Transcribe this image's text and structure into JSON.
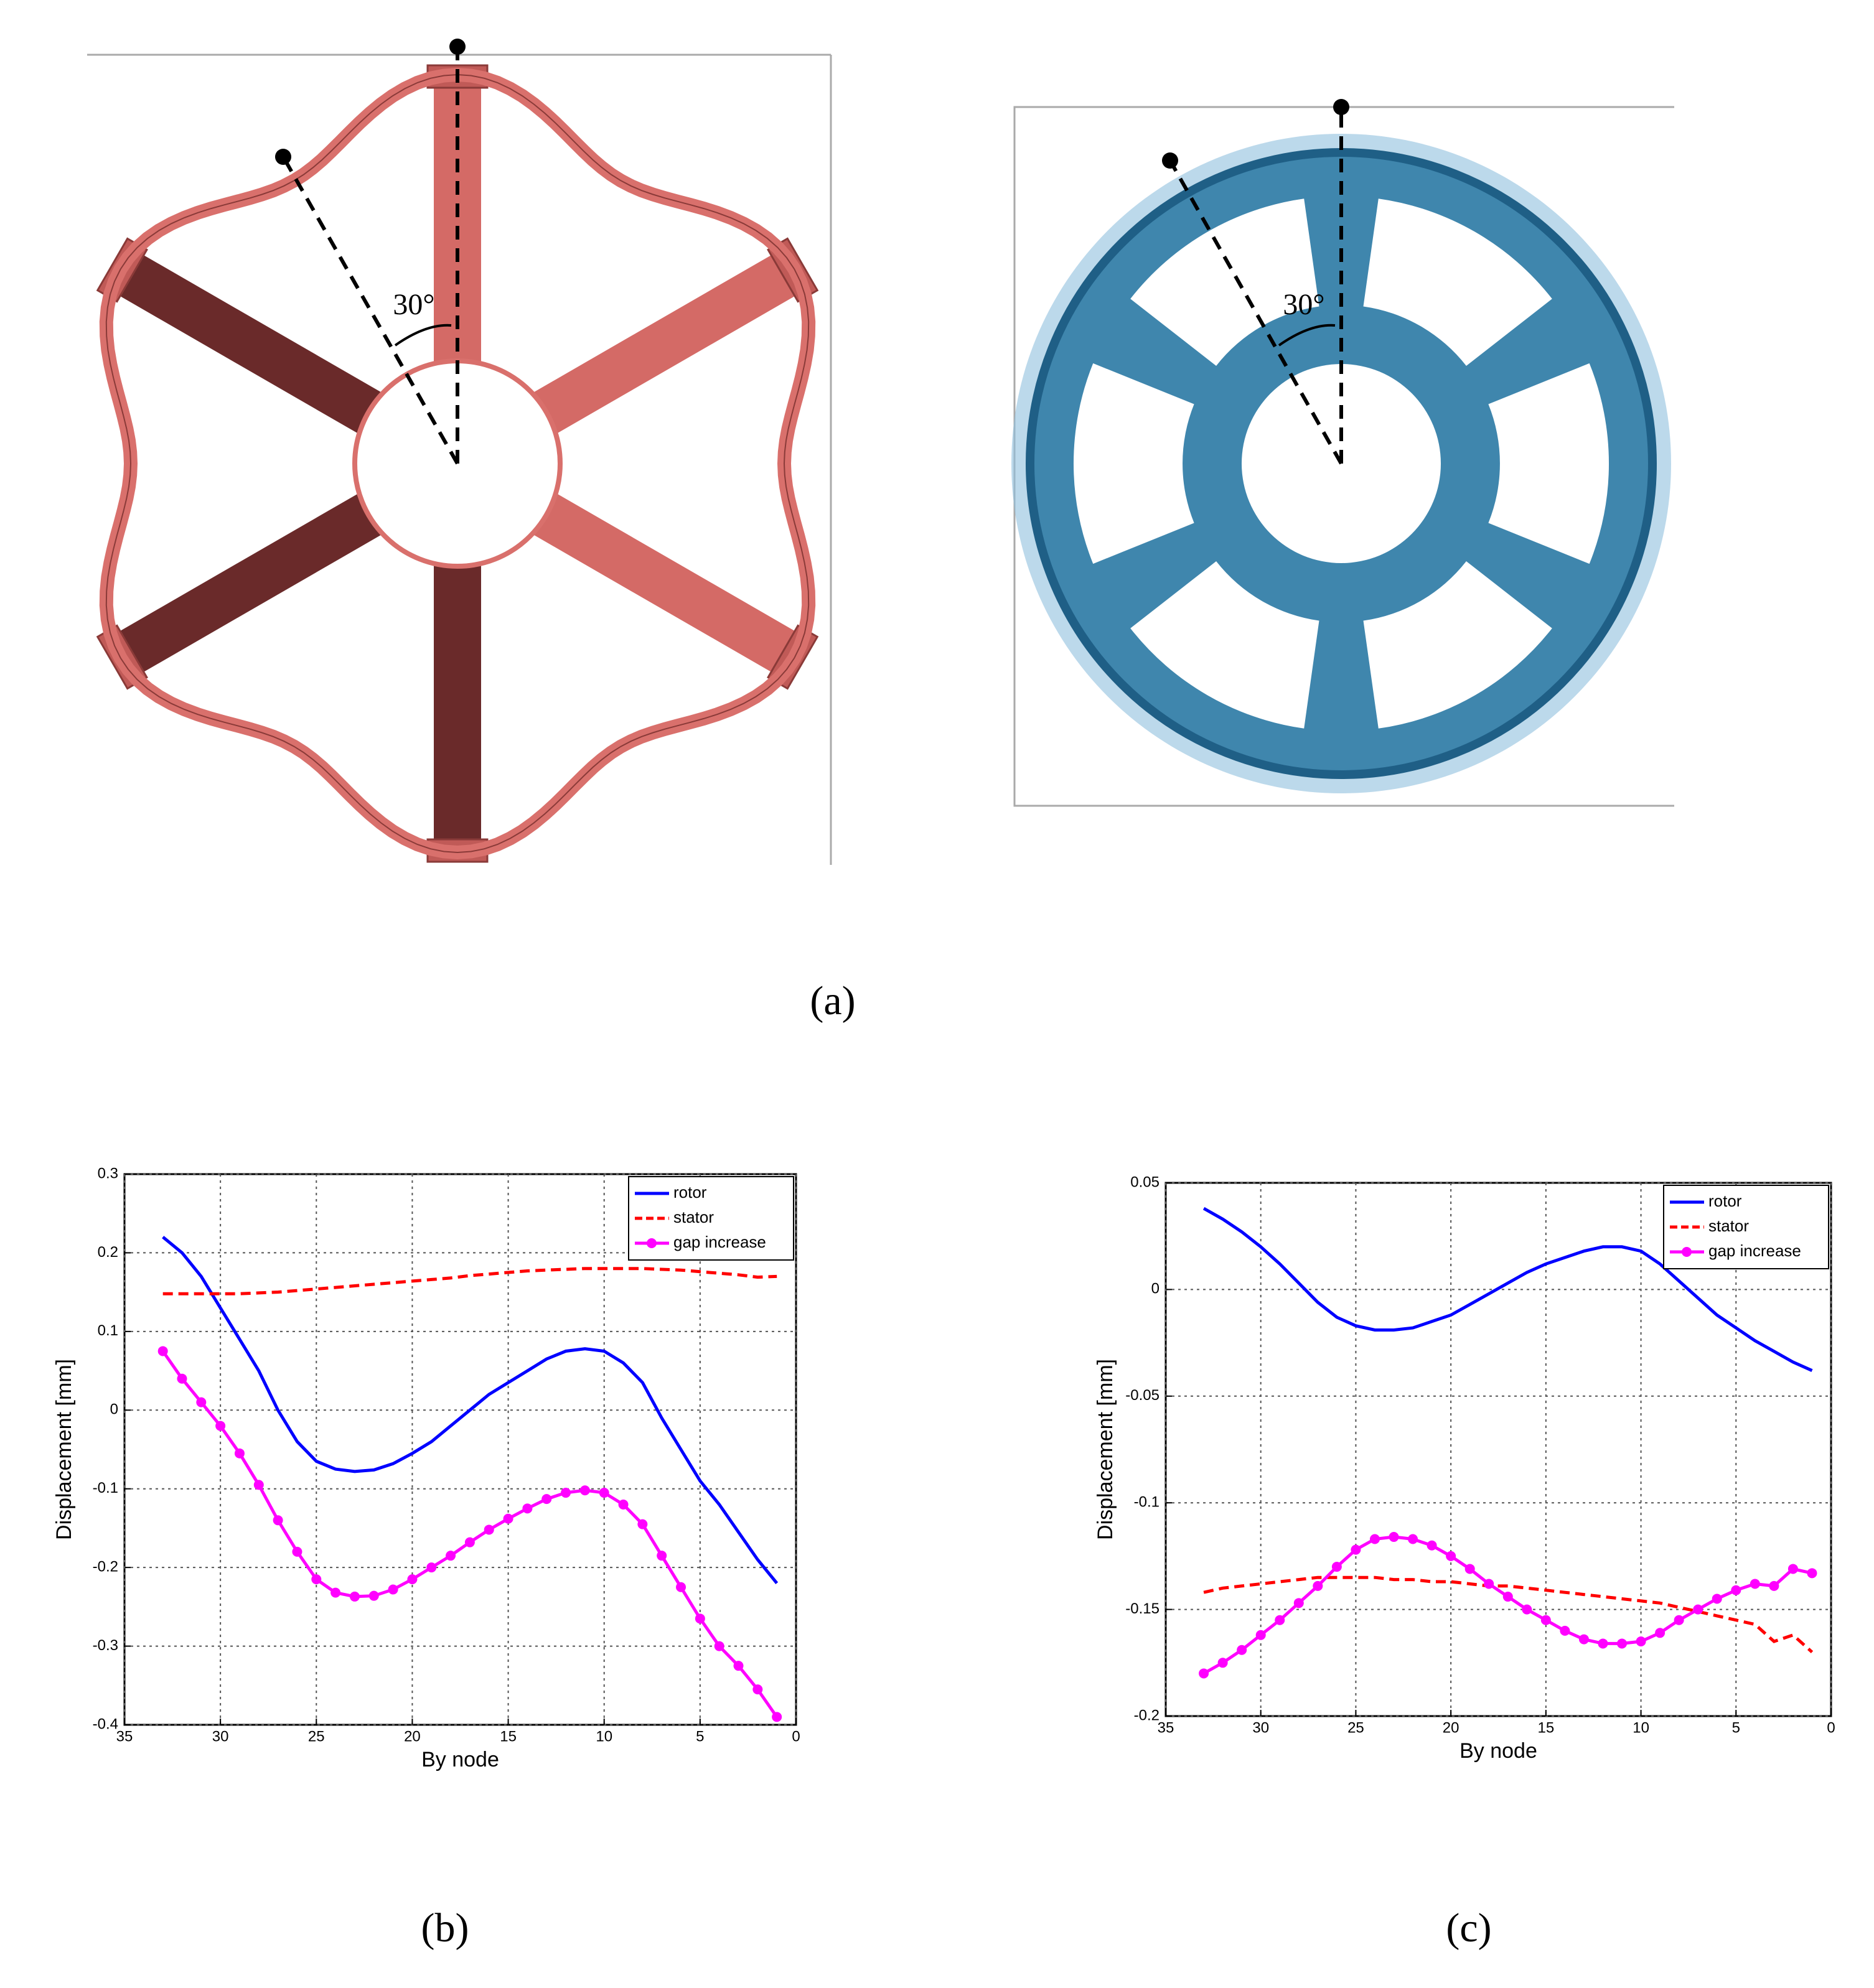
{
  "figure": {
    "panel_labels": [
      "(a)",
      "(b)",
      "(c)"
    ],
    "angle_labels": [
      "30°",
      "30°"
    ]
  },
  "chart_data": [
    {
      "type": "line",
      "xlabel": "By node",
      "ylabel": "Displacement [mm]",
      "x": [
        33,
        32,
        31,
        30,
        29,
        28,
        27,
        26,
        25,
        24,
        23,
        22,
        21,
        20,
        19,
        18,
        17,
        16,
        15,
        14,
        13,
        12,
        11,
        10,
        9,
        8,
        7,
        6,
        5,
        4,
        3,
        2,
        1
      ],
      "xlim": [
        35,
        0
      ],
      "xticks": [
        35,
        30,
        25,
        20,
        15,
        10,
        5,
        0
      ],
      "ylim": [
        -0.4,
        0.3
      ],
      "yticks": [
        0.3,
        0.2,
        0.1,
        0,
        -0.1,
        -0.2,
        -0.3,
        -0.4
      ],
      "grid": true,
      "legend": "upper right",
      "series": [
        {
          "name": "rotor",
          "color": "#0000ff",
          "linestyle": "solid",
          "values": [
            0.22,
            0.2,
            0.17,
            0.13,
            0.09,
            0.05,
            0.0,
            -0.04,
            -0.065,
            -0.075,
            -0.078,
            -0.076,
            -0.068,
            -0.055,
            -0.04,
            -0.02,
            0.0,
            0.02,
            0.035,
            0.05,
            0.065,
            0.075,
            0.078,
            0.075,
            0.06,
            0.035,
            -0.01,
            -0.05,
            -0.09,
            -0.12,
            -0.155,
            -0.19,
            -0.22
          ]
        },
        {
          "name": "stator",
          "color": "#ff0000",
          "linestyle": "dashed",
          "values": [
            0.148,
            0.148,
            0.148,
            0.148,
            0.148,
            0.149,
            0.15,
            0.152,
            0.154,
            0.156,
            0.158,
            0.16,
            0.162,
            0.164,
            0.166,
            0.168,
            0.171,
            0.173,
            0.175,
            0.177,
            0.178,
            0.179,
            0.18,
            0.18,
            0.18,
            0.18,
            0.179,
            0.178,
            0.176,
            0.174,
            0.172,
            0.169,
            0.17
          ]
        },
        {
          "name": "gap increase",
          "color": "#ff00ff",
          "linestyle": "solid",
          "marker": "star",
          "values": [
            0.075,
            0.04,
            0.01,
            -0.02,
            -0.055,
            -0.095,
            -0.14,
            -0.18,
            -0.215,
            -0.232,
            -0.237,
            -0.236,
            -0.228,
            -0.215,
            -0.2,
            -0.185,
            -0.168,
            -0.152,
            -0.138,
            -0.125,
            -0.113,
            -0.105,
            -0.102,
            -0.105,
            -0.12,
            -0.145,
            -0.185,
            -0.225,
            -0.265,
            -0.3,
            -0.325,
            -0.355,
            -0.39
          ]
        }
      ]
    },
    {
      "type": "line",
      "xlabel": "By node",
      "ylabel": "Displacement [mm]",
      "x": [
        33,
        32,
        31,
        30,
        29,
        28,
        27,
        26,
        25,
        24,
        23,
        22,
        21,
        20,
        19,
        18,
        17,
        16,
        15,
        14,
        13,
        12,
        11,
        10,
        9,
        8,
        7,
        6,
        5,
        4,
        3,
        2,
        1
      ],
      "xlim": [
        35,
        0
      ],
      "xticks": [
        35,
        30,
        25,
        20,
        15,
        10,
        5,
        0
      ],
      "ylim": [
        -0.2,
        0.05
      ],
      "yticks": [
        0.05,
        0,
        -0.05,
        -0.1,
        -0.15,
        -0.2
      ],
      "grid": true,
      "legend": "upper right",
      "series": [
        {
          "name": "rotor",
          "color": "#0000ff",
          "linestyle": "solid",
          "values": [
            0.038,
            0.033,
            0.027,
            0.02,
            0.012,
            0.003,
            -0.006,
            -0.013,
            -0.017,
            -0.019,
            -0.019,
            -0.018,
            -0.015,
            -0.012,
            -0.007,
            -0.002,
            0.003,
            0.008,
            0.012,
            0.015,
            0.018,
            0.02,
            0.02,
            0.018,
            0.012,
            0.004,
            -0.004,
            -0.012,
            -0.018,
            -0.024,
            -0.029,
            -0.034,
            -0.038
          ]
        },
        {
          "name": "stator",
          "color": "#ff0000",
          "linestyle": "dashed",
          "values": [
            -0.142,
            -0.14,
            -0.139,
            -0.138,
            -0.137,
            -0.136,
            -0.135,
            -0.135,
            -0.135,
            -0.135,
            -0.136,
            -0.136,
            -0.137,
            -0.137,
            -0.138,
            -0.139,
            -0.139,
            -0.14,
            -0.141,
            -0.142,
            -0.143,
            -0.144,
            -0.145,
            -0.146,
            -0.147,
            -0.149,
            -0.151,
            -0.153,
            -0.155,
            -0.157,
            -0.165,
            -0.162,
            -0.17
          ]
        },
        {
          "name": "gap increase",
          "color": "#ff00ff",
          "linestyle": "solid",
          "marker": "star",
          "values": [
            -0.18,
            -0.175,
            -0.169,
            -0.162,
            -0.155,
            -0.147,
            -0.139,
            -0.13,
            -0.122,
            -0.117,
            -0.116,
            -0.117,
            -0.12,
            -0.125,
            -0.131,
            -0.138,
            -0.144,
            -0.15,
            -0.155,
            -0.16,
            -0.164,
            -0.166,
            -0.166,
            -0.165,
            -0.161,
            -0.155,
            -0.15,
            -0.145,
            -0.141,
            -0.138,
            -0.139,
            -0.131,
            -0.133
          ]
        }
      ]
    }
  ]
}
